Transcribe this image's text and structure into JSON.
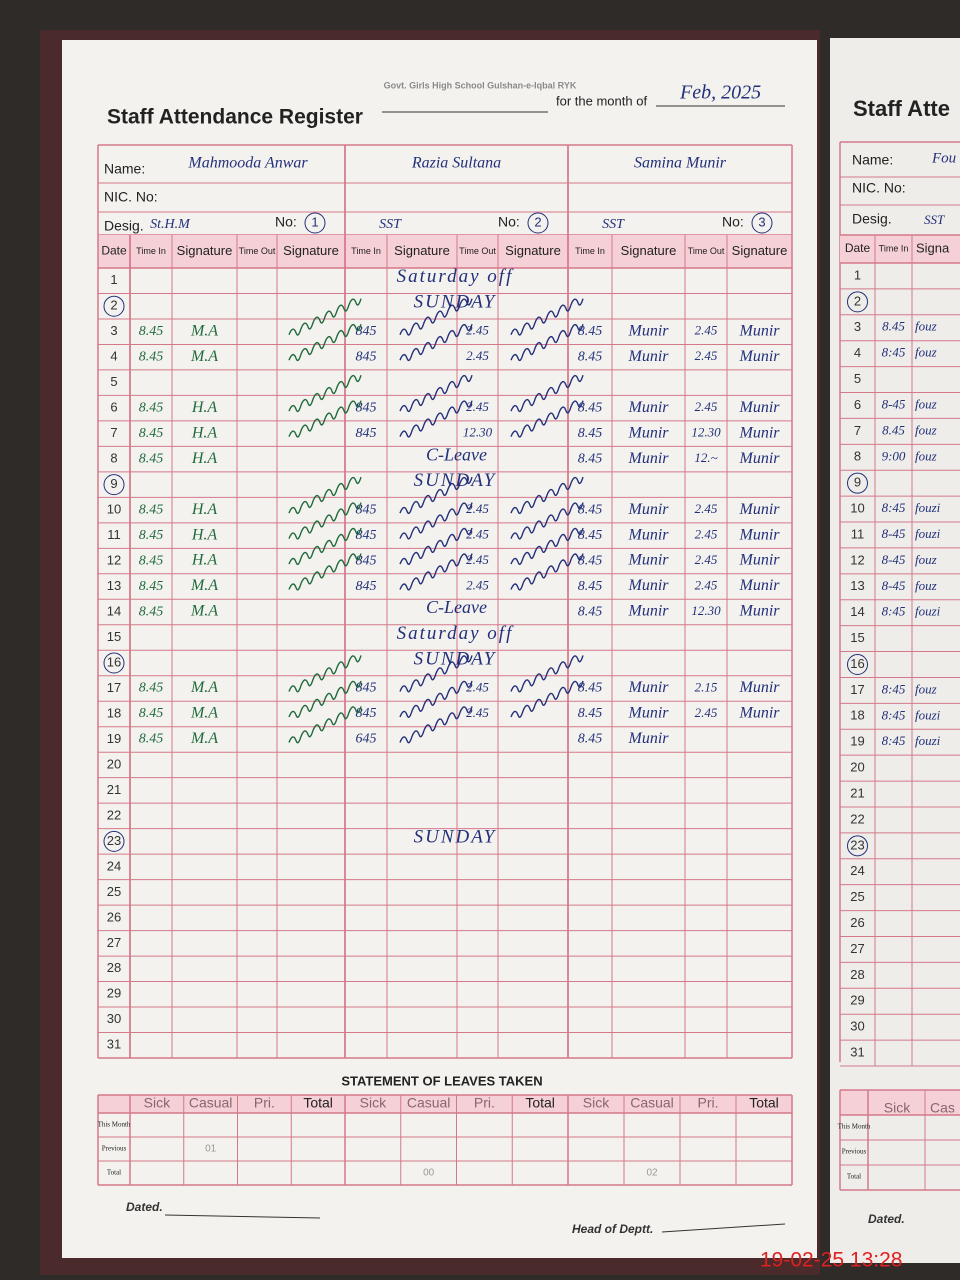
{
  "register": {
    "header": {
      "school": "Govt. Girls High School Gulshan-e-Iqbal RYK",
      "title": "Staff Attendance Register",
      "month_label": "for the month of",
      "month": "Feb, 2025"
    },
    "labels": {
      "name": "Name:",
      "nic": "NIC. No:",
      "desig": "Desig.",
      "no": "No:"
    },
    "staff": [
      {
        "name": "Mahmooda Anwar",
        "desig": "St.H.M",
        "no": "1"
      },
      {
        "name": "Razia Sultana",
        "desig": "SST",
        "no": "2"
      },
      {
        "name": "Samina Munir",
        "desig": "SST",
        "no": "3"
      }
    ],
    "columns": [
      "Date",
      "Time In",
      "Signature",
      "Time Out",
      "Signature"
    ],
    "rows": [
      {
        "date": "1",
        "note": "Saturday off"
      },
      {
        "date": "2",
        "circled": true,
        "note": "SUNDAY"
      },
      {
        "date": "3",
        "entries": [
          {
            "in": "8.45",
            "sig": "M.A",
            "out_sig": true
          },
          {
            "in": "845",
            "sig": true,
            "out": "2.45",
            "out_sig": true
          },
          {
            "in": "8.45",
            "sig": "Munir",
            "out": "2.45",
            "out_sig": "Munir"
          }
        ]
      },
      {
        "date": "4",
        "entries": [
          {
            "in": "8.45",
            "sig": "M.A",
            "out_sig": true
          },
          {
            "in": "845",
            "sig": true,
            "out": "2.45",
            "out_sig": true
          },
          {
            "in": "8.45",
            "sig": "Munir",
            "out": "2.45",
            "out_sig": "Munir"
          }
        ]
      },
      {
        "date": "5"
      },
      {
        "date": "6",
        "entries": [
          {
            "in": "8.45",
            "sig": "H.A",
            "out_sig": true
          },
          {
            "in": "845",
            "sig": true,
            "out": "2.45",
            "out_sig": true
          },
          {
            "in": "8.45",
            "sig": "Munir",
            "out": "2.45",
            "out_sig": "Munir"
          }
        ]
      },
      {
        "date": "7",
        "entries": [
          {
            "in": "8.45",
            "sig": "H.A",
            "out_sig": true
          },
          {
            "in": "845",
            "sig": true,
            "out": "12.30",
            "out_sig": true
          },
          {
            "in": "8.45",
            "sig": "Munir",
            "out": "12.30",
            "out_sig": "Munir"
          }
        ]
      },
      {
        "date": "8",
        "entries": [
          {
            "in": "8.45",
            "sig": "H.A"
          },
          {
            "note": "C-Leave"
          },
          {
            "in": "8.45",
            "sig": "Munir",
            "out": "12.~",
            "out_sig": "Munir"
          }
        ]
      },
      {
        "date": "9",
        "circled": true,
        "note": "SUNDAY"
      },
      {
        "date": "10",
        "entries": [
          {
            "in": "8.45",
            "sig": "H.A",
            "out_sig": true
          },
          {
            "in": "845",
            "sig": true,
            "out": "2.45",
            "out_sig": true
          },
          {
            "in": "8.45",
            "sig": "Munir",
            "out": "2.45",
            "out_sig": "Munir"
          }
        ]
      },
      {
        "date": "11",
        "entries": [
          {
            "in": "8.45",
            "sig": "H.A",
            "out_sig": true
          },
          {
            "in": "845",
            "sig": true,
            "out": "2.45",
            "out_sig": true
          },
          {
            "in": "8.45",
            "sig": "Munir",
            "out": "2.45",
            "out_sig": "Munir"
          }
        ]
      },
      {
        "date": "12",
        "entries": [
          {
            "in": "8.45",
            "sig": "H.A",
            "out_sig": true
          },
          {
            "in": "845",
            "sig": true,
            "out": "2.45",
            "out_sig": true
          },
          {
            "in": "8.45",
            "sig": "Munir",
            "out": "2.45",
            "out_sig": "Munir"
          }
        ]
      },
      {
        "date": "13",
        "entries": [
          {
            "in": "8.45",
            "sig": "M.A",
            "out_sig": true
          },
          {
            "in": "845",
            "sig": true,
            "out": "2.45",
            "out_sig": true
          },
          {
            "in": "8.45",
            "sig": "Munir",
            "out": "2.45",
            "out_sig": "Munir"
          }
        ]
      },
      {
        "date": "14",
        "entries": [
          {
            "in": "8.45",
            "sig": "M.A"
          },
          {
            "note": "C-Leave"
          },
          {
            "in": "8.45",
            "sig": "Munir",
            "out": "12.30",
            "out_sig": "Munir"
          }
        ]
      },
      {
        "date": "15",
        "note": "Saturday off"
      },
      {
        "date": "16",
        "circled": true,
        "note": "SUNDAY"
      },
      {
        "date": "17",
        "entries": [
          {
            "in": "8.45",
            "sig": "M.A",
            "out_sig": true
          },
          {
            "in": "845",
            "sig": true,
            "out": "2.45",
            "out_sig": true
          },
          {
            "in": "8.45",
            "sig": "Munir",
            "out": "2.15",
            "out_sig": "Munir"
          }
        ]
      },
      {
        "date": "18",
        "entries": [
          {
            "in": "8.45",
            "sig": "M.A",
            "out_sig": true
          },
          {
            "in": "845",
            "sig": true,
            "out": "2.45",
            "out_sig": true
          },
          {
            "in": "8.45",
            "sig": "Munir",
            "out": "2.45",
            "out_sig": "Munir"
          }
        ]
      },
      {
        "date": "19",
        "entries": [
          {
            "in": "8.45",
            "sig": "M.A",
            "out_sig": true
          },
          {
            "in": "645",
            "sig": true
          },
          {
            "in": "8.45",
            "sig": "Munir"
          }
        ]
      },
      {
        "date": "20"
      },
      {
        "date": "21"
      },
      {
        "date": "22"
      },
      {
        "date": "23",
        "circled": true,
        "note": "SUNDAY"
      },
      {
        "date": "24"
      },
      {
        "date": "25"
      },
      {
        "date": "26"
      },
      {
        "date": "27"
      },
      {
        "date": "28"
      },
      {
        "date": "29"
      },
      {
        "date": "30"
      },
      {
        "date": "31"
      }
    ],
    "statement": {
      "title": "STATEMENT OF LEAVES TAKEN",
      "columns": [
        "Sick",
        "Casual",
        "Pri.",
        "Total"
      ],
      "rows": [
        {
          "label": "This Month",
          "values": [
            [
              null,
              null,
              null,
              null
            ],
            [
              null,
              null,
              null,
              null
            ],
            [
              null,
              null,
              null,
              null
            ]
          ]
        },
        {
          "label": "Previous",
          "values": [
            [
              null,
              "01",
              null,
              null
            ],
            [
              null,
              null,
              null,
              null
            ],
            [
              null,
              null,
              null,
              null
            ]
          ]
        },
        {
          "label": "Total",
          "values": [
            [
              null,
              null,
              null,
              null
            ],
            [
              null,
              "00",
              null,
              null
            ],
            [
              null,
              "02",
              null,
              null
            ]
          ]
        }
      ]
    },
    "footer": {
      "dated": "Dated.",
      "head": "Head of Deptt."
    },
    "timestamp": "19-02-25  13:28"
  },
  "right_page": {
    "title": "Staff Atte",
    "name": "Fou",
    "desig": "SST",
    "columns": [
      "Date",
      "Time In",
      "Signa"
    ],
    "rows": [
      {
        "date": "1"
      },
      {
        "date": "2",
        "circled": true
      },
      {
        "date": "3",
        "in": "8.45",
        "sig": "fouz"
      },
      {
        "date": "4",
        "in": "8:45",
        "sig": "fouz"
      },
      {
        "date": "5"
      },
      {
        "date": "6",
        "in": "8-45",
        "sig": "fouz"
      },
      {
        "date": "7",
        "in": "8.45",
        "sig": "fouz"
      },
      {
        "date": "8",
        "in": "9:00",
        "sig": "fouz"
      },
      {
        "date": "9",
        "circled": true
      },
      {
        "date": "10",
        "in": "8:45",
        "sig": "fouzi"
      },
      {
        "date": "11",
        "in": "8-45",
        "sig": "fouzi"
      },
      {
        "date": "12",
        "in": "8-45",
        "sig": "fouz"
      },
      {
        "date": "13",
        "in": "8-45",
        "sig": "fouz"
      },
      {
        "date": "14",
        "in": "8:45",
        "sig": "fouzi"
      },
      {
        "date": "15"
      },
      {
        "date": "16",
        "circled": true
      },
      {
        "date": "17",
        "in": "8:45",
        "sig": "fouz"
      },
      {
        "date": "18",
        "in": "8:45",
        "sig": "fouzi"
      },
      {
        "date": "19",
        "in": "8:45",
        "sig": "fouzi"
      },
      {
        "date": "20"
      },
      {
        "date": "21"
      },
      {
        "date": "22"
      },
      {
        "date": "23",
        "circled": true
      },
      {
        "date": "24"
      },
      {
        "date": "25"
      },
      {
        "date": "26"
      },
      {
        "date": "27"
      },
      {
        "date": "28"
      },
      {
        "date": "29"
      },
      {
        "date": "30"
      },
      {
        "date": "31"
      }
    ],
    "statement": {
      "columns": [
        "Sick",
        "Cas"
      ],
      "rows": [
        "This Month",
        "Previous",
        "Total"
      ]
    },
    "dated": "Dated."
  }
}
